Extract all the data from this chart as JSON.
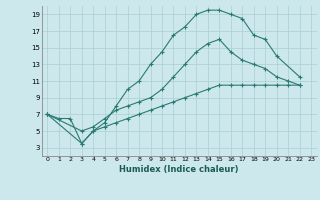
{
  "xlabel": "Humidex (Indice chaleur)",
  "bg_color": "#cce8ec",
  "grid_color": "#aacdd4",
  "line_color": "#2a7a70",
  "xlim": [
    -0.5,
    23.5
  ],
  "ylim": [
    2,
    20
  ],
  "xticks": [
    0,
    1,
    2,
    3,
    4,
    5,
    6,
    7,
    8,
    9,
    10,
    11,
    12,
    13,
    14,
    15,
    16,
    17,
    18,
    19,
    20,
    21,
    22,
    23
  ],
  "yticks": [
    3,
    5,
    7,
    9,
    11,
    13,
    15,
    17,
    19
  ],
  "line1_x": [
    0,
    1,
    2,
    3,
    4,
    5,
    6,
    7,
    8,
    9,
    10,
    11,
    12,
    13,
    14,
    15,
    16,
    17,
    18,
    19,
    20,
    22
  ],
  "line1_y": [
    7.0,
    6.5,
    6.5,
    3.5,
    5.0,
    6.0,
    8.0,
    10.0,
    11.0,
    13.0,
    14.5,
    16.5,
    17.5,
    19.0,
    19.5,
    19.5,
    19.0,
    18.5,
    16.5,
    16.0,
    14.0,
    11.5
  ],
  "line2_x": [
    0,
    3,
    4,
    5,
    6,
    7,
    8,
    9,
    10,
    11,
    12,
    13,
    14,
    15,
    16,
    17,
    18,
    19,
    20,
    21,
    22
  ],
  "line2_y": [
    7.0,
    5.0,
    5.5,
    6.5,
    7.5,
    8.0,
    8.5,
    9.0,
    10.0,
    11.5,
    13.0,
    14.5,
    15.5,
    16.0,
    14.5,
    13.5,
    13.0,
    12.5,
    11.5,
    11.0,
    10.5
  ],
  "line3_x": [
    0,
    3,
    4,
    5,
    6,
    7,
    8,
    9,
    10,
    11,
    12,
    13,
    14,
    15,
    16,
    17,
    18,
    19,
    20,
    21,
    22
  ],
  "line3_y": [
    7.0,
    3.5,
    5.0,
    5.5,
    6.0,
    6.5,
    7.0,
    7.5,
    8.0,
    8.5,
    9.0,
    9.5,
    10.0,
    10.5,
    10.5,
    10.5,
    10.5,
    10.5,
    10.5,
    10.5,
    10.5
  ]
}
